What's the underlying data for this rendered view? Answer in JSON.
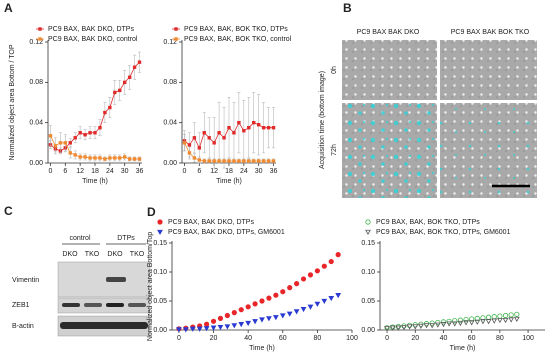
{
  "panel_labels": [
    "A",
    "B",
    "C",
    "D"
  ],
  "chart_data": [
    {
      "type": "line",
      "y_label": "Normalized object area Bottom / TOP",
      "x_label": "Time (h)",
      "x": [
        0,
        2,
        4,
        6,
        8,
        10,
        12,
        14,
        16,
        18,
        20,
        22,
        24,
        26,
        28,
        30,
        32,
        34,
        36
      ],
      "xlim": [
        -1,
        37
      ],
      "xticks": [
        0,
        6,
        12,
        18,
        24,
        30,
        36
      ],
      "ylim": [
        0,
        0.12
      ],
      "yticks": [
        {
          "value": 0,
          "label": "0.00"
        },
        0.04,
        0.08,
        0.12
      ],
      "series": [
        {
          "name": "PC9 BAX, BAK DKO, DTPs",
          "color": "#e02a2a",
          "marker": "square",
          "filled": true,
          "values": [
            0.018,
            0.014,
            0.012,
            0.015,
            0.02,
            0.025,
            0.03,
            0.028,
            0.03,
            0.03,
            0.035,
            0.05,
            0.055,
            0.07,
            0.072,
            0.08,
            0.085,
            0.095,
            0.1
          ],
          "errors": [
            0.004,
            0.003,
            0.003,
            0.004,
            0.004,
            0.005,
            0.006,
            0.005,
            0.006,
            0.006,
            0.008,
            0.01,
            0.01,
            0.012,
            0.01,
            0.012,
            0.012,
            0.012,
            0.01
          ]
        },
        {
          "name": "PC9 BAX, BAK DKO, control",
          "color": "#f08a30",
          "marker": "square",
          "filled": true,
          "values": [
            0.027,
            0.017,
            0.02,
            0.02,
            0.01,
            0.008,
            0.006,
            0.006,
            0.005,
            0.005,
            0.005,
            0.004,
            0.005,
            0.005,
            0.005,
            0.006,
            0.004,
            0.004,
            0.004
          ],
          "errors": [
            0.01,
            0.008,
            0.01,
            0.008,
            0.005,
            0.004,
            0.003,
            0.003,
            0.003,
            0.003,
            0.003,
            0.002,
            0.003,
            0.003,
            0.003,
            0.003,
            0.002,
            0.002,
            0.002
          ]
        }
      ]
    },
    {
      "type": "line",
      "x_label": "Time (h)",
      "x": [
        0,
        2,
        4,
        6,
        8,
        10,
        12,
        14,
        16,
        18,
        20,
        22,
        24,
        26,
        28,
        30,
        32,
        34,
        36
      ],
      "xlim": [
        -1,
        37
      ],
      "xticks": [
        0,
        6,
        12,
        18,
        24,
        30,
        36
      ],
      "ylim": [
        0,
        0.12
      ],
      "yticks": [
        {
          "value": 0,
          "label": "0.00"
        },
        0.04,
        0.08,
        0.12
      ],
      "series": [
        {
          "name": "PC9 BAX, BAK, BOK TKO, DTPs",
          "color": "#e02a2a",
          "marker": "square",
          "filled": true,
          "values": [
            0.022,
            0.018,
            0.025,
            0.015,
            0.03,
            0.025,
            0.02,
            0.03,
            0.025,
            0.035,
            0.03,
            0.04,
            0.032,
            0.035,
            0.04,
            0.038,
            0.035,
            0.035,
            0.035
          ],
          "errors": [
            0.01,
            0.012,
            0.015,
            0.015,
            0.02,
            0.02,
            0.025,
            0.03,
            0.03,
            0.03,
            0.03,
            0.03,
            0.03,
            0.03,
            0.03,
            0.03,
            0.025,
            0.02,
            0.02
          ]
        },
        {
          "name": "PC9 BAX, BAK, BOK TKO, control",
          "color": "#f08a30",
          "marker": "square",
          "filled": true,
          "values": [
            0.02,
            0.01,
            0.005,
            0.003,
            0.002,
            0.002,
            0.002,
            0.002,
            0.002,
            0.002,
            0.002,
            0.002,
            0.002,
            0.002,
            0.002,
            0.002,
            0.002,
            0.002,
            0.002
          ],
          "errors": [
            0.008,
            0.006,
            0.004,
            0.003,
            0.002,
            0.002,
            0.002,
            0.002,
            0.002,
            0.002,
            0.002,
            0.002,
            0.002,
            0.002,
            0.002,
            0.002,
            0.002,
            0.002,
            0.002
          ]
        }
      ]
    },
    {
      "type": "scatter",
      "y_label": "Normalized object area Bottom/Top",
      "x_label": "Time (h)",
      "x": [
        0,
        4,
        8,
        12,
        16,
        20,
        24,
        28,
        32,
        36,
        40,
        44,
        48,
        52,
        56,
        60,
        64,
        68,
        72,
        76,
        80,
        84,
        88,
        92
      ],
      "xlim": [
        -4,
        100
      ],
      "xticks": [
        0,
        20,
        40,
        60,
        80,
        100
      ],
      "ylim": [
        0,
        0.15
      ],
      "yticks": [
        {
          "value": 0,
          "label": "0.00"
        },
        0.05,
        {
          "value": 0.1,
          "label": "0.10"
        },
        0.15
      ],
      "series": [
        {
          "name": "PC9 BAX, BAK DKO, DTPs",
          "color": "#e8262a",
          "marker": "circle",
          "filled": true,
          "values": [
            0.002,
            0.003,
            0.005,
            0.007,
            0.01,
            0.015,
            0.02,
            0.025,
            0.03,
            0.035,
            0.04,
            0.045,
            0.05,
            0.055,
            0.06,
            0.066,
            0.073,
            0.08,
            0.088,
            0.095,
            0.102,
            0.11,
            0.118,
            0.13
          ]
        },
        {
          "name": "PC9 BAX, BAK DKO, DTPs, GM6001",
          "color": "#2a3bd1",
          "marker": "triangle-down",
          "filled": true,
          "values": [
            0.001,
            0.001,
            0.002,
            0.002,
            0.003,
            0.004,
            0.005,
            0.006,
            0.008,
            0.01,
            0.012,
            0.015,
            0.018,
            0.02,
            0.022,
            0.025,
            0.028,
            0.032,
            0.036,
            0.04,
            0.045,
            0.05,
            0.055,
            0.06
          ]
        }
      ]
    },
    {
      "type": "scatter",
      "x_label": "Time (h)",
      "x": [
        0,
        4,
        8,
        12,
        16,
        20,
        24,
        28,
        32,
        36,
        40,
        44,
        48,
        52,
        56,
        60,
        64,
        68,
        72,
        76,
        80,
        84,
        88,
        92
      ],
      "xlim": [
        -5,
        112
      ],
      "xticks": [
        0,
        20,
        40,
        60,
        80,
        100
      ],
      "ylim": [
        0,
        0.15
      ],
      "yticks": [
        {
          "value": 0,
          "label": "0.00"
        },
        0.05,
        {
          "value": 0.1,
          "label": "0.10"
        },
        0.15
      ],
      "series": [
        {
          "name": "PC9 BAX, BAK, BOK TKO, DTPs",
          "color": "#3cb44b",
          "marker": "circle",
          "filled": false,
          "values": [
            0.004,
            0.005,
            0.006,
            0.007,
            0.008,
            0.009,
            0.01,
            0.011,
            0.012,
            0.013,
            0.014,
            0.015,
            0.016,
            0.017,
            0.018,
            0.019,
            0.02,
            0.021,
            0.022,
            0.023,
            0.024,
            0.025,
            0.026,
            0.027
          ]
        },
        {
          "name": "PC9 BAX, BAK, BOK TKO, DTPs, GM6001",
          "color": "#555555",
          "marker": "triangle-down",
          "filled": false,
          "values": [
            0.003,
            0.004,
            0.004,
            0.005,
            0.006,
            0.006,
            0.007,
            0.008,
            0.008,
            0.009,
            0.01,
            0.011,
            0.011,
            0.012,
            0.013,
            0.013,
            0.014,
            0.015,
            0.015,
            0.016,
            0.017,
            0.017,
            0.018,
            0.019
          ]
        }
      ]
    }
  ],
  "microscopy": {
    "column_titles": [
      "PC9 BAX BAK DKO",
      "PC9 BAX BAK BOK TKO"
    ],
    "row_labels": [
      "0h",
      "72h"
    ],
    "y_label": "Acquisition time (bottom image)"
  },
  "western_blot": {
    "group_labels": [
      "control",
      "DTPs"
    ],
    "lane_labels": [
      "DKO",
      "TKO",
      "DKO",
      "TKO"
    ],
    "row_labels": [
      "Vimentin",
      "ZEB1",
      "B-actin"
    ]
  }
}
